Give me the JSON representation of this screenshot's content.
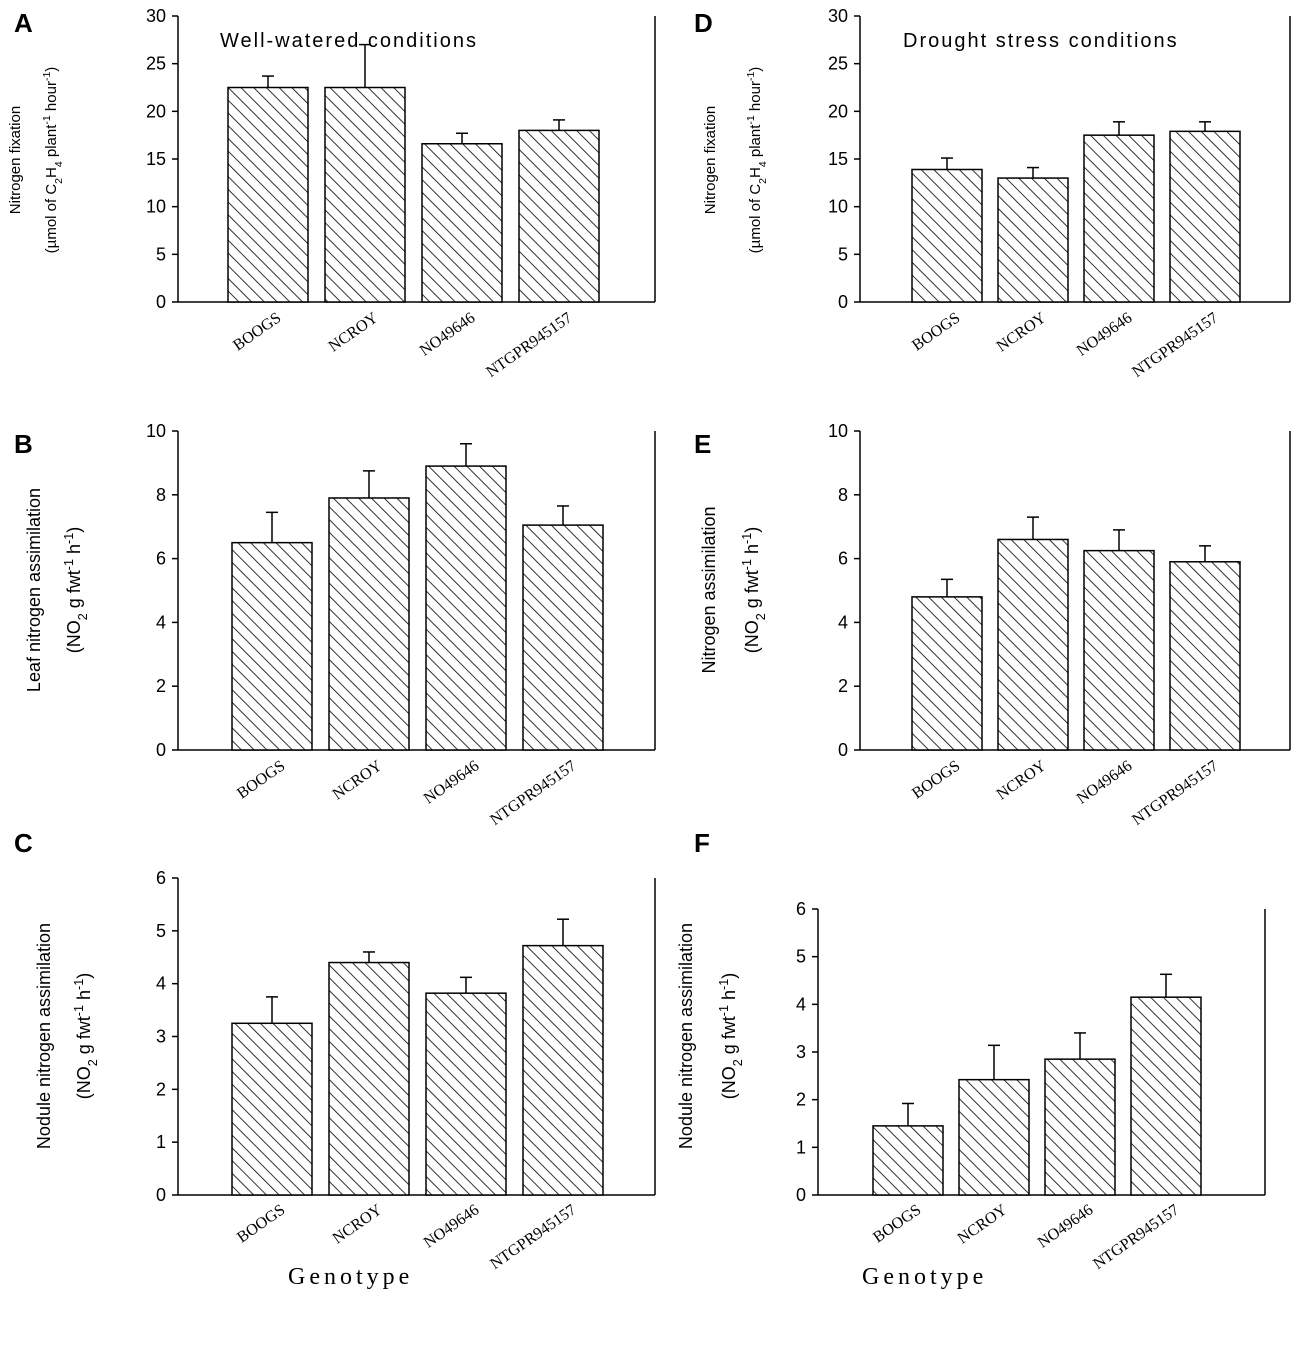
{
  "figure": {
    "genotype_label": "Genotype",
    "colors": {
      "ink": "#000000",
      "bar_fill": "#ffffff"
    }
  },
  "chart_data": [
    {
      "panel": "A",
      "type": "bar",
      "title": "Well-watered conditions",
      "categories": [
        "BOOGS",
        "NCROY",
        "NO49646",
        "NTGPR945157"
      ],
      "values": [
        22.5,
        22.5,
        16.6,
        18.0
      ],
      "errors": [
        1.2,
        4.5,
        1.1,
        1.1
      ],
      "ylim": [
        0,
        30
      ],
      "yticks": [
        0,
        5,
        10,
        15,
        20,
        25,
        30
      ],
      "ylabel_line1": "Nitrogen fixation",
      "ylabel_line2": "(µmol of C2H4 plant-1 hour-1)",
      "xlabel": ""
    },
    {
      "panel": "B",
      "type": "bar",
      "title": "",
      "categories": [
        "BOOGS",
        "NCROY",
        "NO49646",
        "NTGPR945157"
      ],
      "values": [
        6.5,
        7.9,
        8.9,
        7.05
      ],
      "errors": [
        0.95,
        0.85,
        0.7,
        0.6
      ],
      "ylim": [
        0,
        10
      ],
      "yticks": [
        0,
        2,
        4,
        6,
        8,
        10
      ],
      "ylabel_line1": "Leaf nitrogen assimilation",
      "ylabel_line2": "(NO2 g fwt-1 h-1)",
      "xlabel": ""
    },
    {
      "panel": "C",
      "type": "bar",
      "title": "",
      "categories": [
        "BOOGS",
        "NCROY",
        "NO49646",
        "NTGPR945157"
      ],
      "values": [
        3.25,
        4.4,
        3.82,
        4.72
      ],
      "errors": [
        0.5,
        0.2,
        0.3,
        0.5
      ],
      "ylim": [
        0,
        6
      ],
      "yticks": [
        0,
        1,
        2,
        3,
        4,
        5,
        6
      ],
      "ylabel_line1": "Nodule nitrogen assimilation",
      "ylabel_line2": "(NO2 g fwt-1 h-1)",
      "xlabel": "Genotype"
    },
    {
      "panel": "D",
      "type": "bar",
      "title": "Drought stress conditions",
      "categories": [
        "BOOGS",
        "NCROY",
        "NO49646",
        "NTGPR945157"
      ],
      "values": [
        13.9,
        13.0,
        17.5,
        17.9
      ],
      "errors": [
        1.2,
        1.1,
        1.4,
        1.0
      ],
      "ylim": [
        0,
        30
      ],
      "yticks": [
        0,
        5,
        10,
        15,
        20,
        25,
        30
      ],
      "ylabel_line1": "Nitrogen fixation",
      "ylabel_line2": "(µmol of C2H4 plant-1 hour-1)",
      "xlabel": ""
    },
    {
      "panel": "E",
      "type": "bar",
      "title": "",
      "categories": [
        "BOOGS",
        "NCROY",
        "NO49646",
        "NTGPR945157"
      ],
      "values": [
        4.8,
        6.6,
        6.25,
        5.9
      ],
      "errors": [
        0.55,
        0.7,
        0.65,
        0.5
      ],
      "ylim": [
        0,
        10
      ],
      "yticks": [
        0,
        2,
        4,
        6,
        8,
        10
      ],
      "ylabel_line1": "Nitrogen assimilation",
      "ylabel_line2": "(NO2 g fwt-1 h-1)",
      "xlabel": ""
    },
    {
      "panel": "F",
      "type": "bar",
      "title": "",
      "categories": [
        "BOOGS",
        "NCROY",
        "NO49646",
        "NTGPR945157"
      ],
      "values": [
        1.45,
        2.42,
        2.85,
        4.15
      ],
      "errors": [
        0.47,
        0.72,
        0.55,
        0.48
      ],
      "ylim": [
        0,
        6
      ],
      "yticks": [
        0,
        1,
        2,
        3,
        4,
        5,
        6
      ],
      "ylabel_line1": "Nodule nitrogen assimilation",
      "ylabel_line2": "(NO2 g fwt-1 h-1)",
      "xlabel": "Genotype"
    }
  ]
}
